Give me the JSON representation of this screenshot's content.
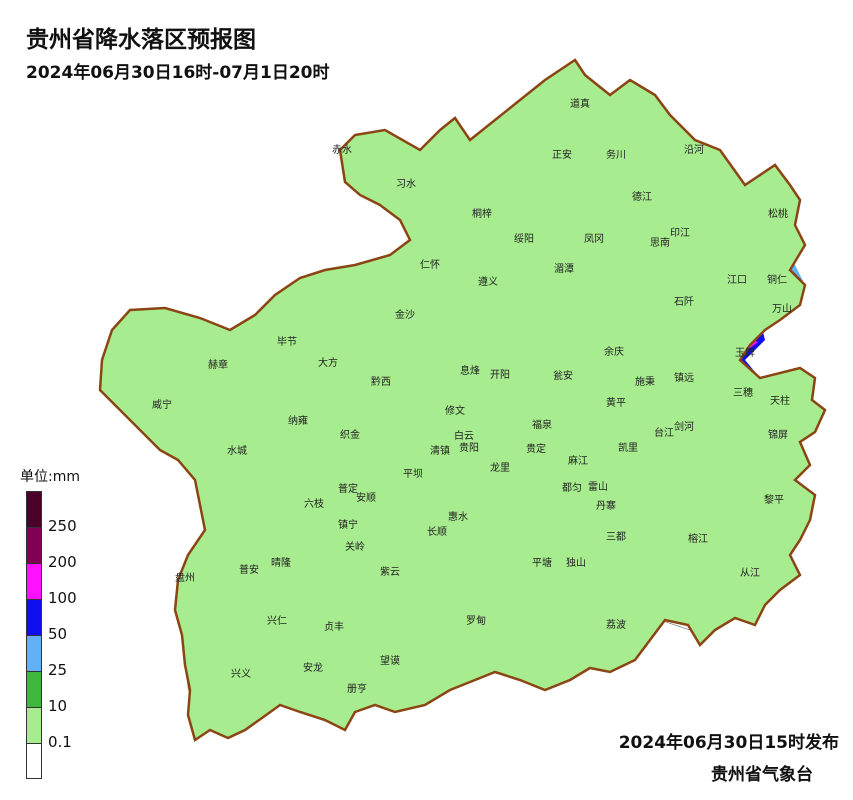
{
  "title": "贵州省降水落区预报图",
  "subtitle": "2024年06月30日16时-07月1日20时",
  "legend": {
    "title": "单位:mm",
    "bins": [
      {
        "label": "250",
        "color": "#4a0028"
      },
      {
        "label": "200",
        "color": "#800055"
      },
      {
        "label": "100",
        "color": "#ff10ff"
      },
      {
        "label": "50",
        "color": "#1010ee"
      },
      {
        "label": "25",
        "color": "#62b0f8"
      },
      {
        "label": "10",
        "color": "#3db83d"
      },
      {
        "label": "0.1",
        "color": "#a8ec90"
      },
      {
        "label": "",
        "color": "#ffffff"
      }
    ]
  },
  "issued": "2024年06月30日15时发布",
  "agency": "贵州省气象台",
  "colors": {
    "border": "#8b4513",
    "county_line": "#8a8a8a"
  },
  "cities": [
    "道真",
    "赤水",
    "正安",
    "务川",
    "沿河",
    "习水",
    "德江",
    "桐梓",
    "绥阳",
    "凤冈",
    "印江",
    "松桃",
    "仁怀",
    "湄潭",
    "思南",
    "遵义",
    "江口",
    "铜仁",
    "金沙",
    "石阡",
    "万山",
    "毕节",
    "大方",
    "余庆",
    "赫章",
    "黔西",
    "开阳",
    "施秉",
    "镇远",
    "三穗",
    "玉屏",
    "息烽",
    "瓮安",
    "黄平",
    "天柱",
    "威宁",
    "修文",
    "纳雍",
    "织金",
    "清镇",
    "白云",
    "贵阳",
    "福泉",
    "凯里",
    "雷山",
    "台江",
    "剑河",
    "锦屏",
    "水城",
    "平坝",
    "龙里",
    "贵定",
    "麻江",
    "六枝",
    "普定",
    "安顺",
    "惠水",
    "都匀",
    "丹寨",
    "榕江",
    "黎平",
    "镇宁",
    "长顺",
    "三都",
    "关岭",
    "晴隆",
    "紫云",
    "平塘",
    "独山",
    "从江",
    "盘州",
    "普安",
    "兴仁",
    "贞丰",
    "罗甸",
    "荔波",
    "望谟",
    "兴义",
    "安龙",
    "册亨"
  ]
}
